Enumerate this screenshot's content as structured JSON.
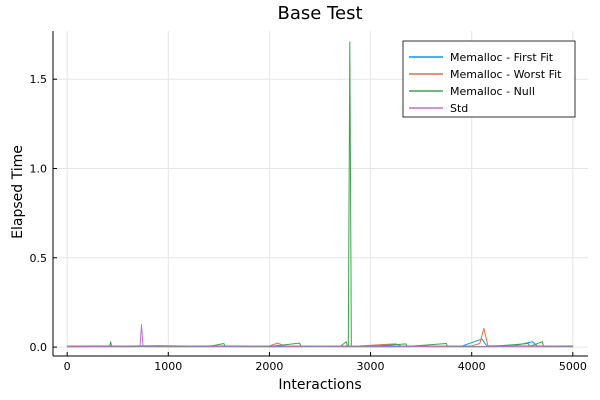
{
  "chart_data": {
    "type": "line",
    "title": "Base Test",
    "xlabel": "Interactions",
    "ylabel": "Elapsed Time",
    "xlim": [
      -140,
      5150
    ],
    "ylim": [
      -0.05,
      1.77
    ],
    "xticks": [
      0,
      1000,
      2000,
      3000,
      4000,
      5000
    ],
    "yticks": [
      0.0,
      0.5,
      1.0,
      1.5
    ],
    "xtick_labels": [
      "0",
      "1000",
      "2000",
      "3000",
      "4000",
      "5000"
    ],
    "ytick_labels": [
      "0.0",
      "0.5",
      "1.0",
      "1.5"
    ],
    "grid": true,
    "legend_position": "top-right",
    "series": [
      {
        "name": "Memalloc - First Fit",
        "color": "#009af9",
        "points": [
          [
            0,
            0.004
          ],
          [
            200,
            0.005
          ],
          [
            400,
            0.004
          ],
          [
            700,
            0.005
          ],
          [
            1000,
            0.006
          ],
          [
            1300,
            0.004
          ],
          [
            1600,
            0.005
          ],
          [
            2000,
            0.005
          ],
          [
            2300,
            0.004
          ],
          [
            2600,
            0.005
          ],
          [
            2800,
            0.005
          ],
          [
            3000,
            0.006
          ],
          [
            3300,
            0.005
          ],
          [
            3600,
            0.004
          ],
          [
            3900,
            0.005
          ],
          [
            4100,
            0.045
          ],
          [
            4150,
            0.006
          ],
          [
            4400,
            0.005
          ],
          [
            4600,
            0.03
          ],
          [
            4650,
            0.006
          ],
          [
            4800,
            0.005
          ],
          [
            5000,
            0.005
          ]
        ]
      },
      {
        "name": "Memalloc - Worst Fit",
        "color": "#e26f46",
        "points": [
          [
            0,
            0.006
          ],
          [
            300,
            0.007
          ],
          [
            600,
            0.006
          ],
          [
            900,
            0.008
          ],
          [
            1200,
            0.006
          ],
          [
            1500,
            0.007
          ],
          [
            2000,
            0.006
          ],
          [
            2080,
            0.022
          ],
          [
            2150,
            0.007
          ],
          [
            2500,
            0.006
          ],
          [
            2900,
            0.007
          ],
          [
            3250,
            0.018
          ],
          [
            3300,
            0.007
          ],
          [
            3700,
            0.006
          ],
          [
            4000,
            0.007
          ],
          [
            4080,
            0.02
          ],
          [
            4120,
            0.105
          ],
          [
            4160,
            0.008
          ],
          [
            4500,
            0.007
          ],
          [
            4800,
            0.006
          ],
          [
            5000,
            0.007
          ]
        ]
      },
      {
        "name": "Memalloc - Null",
        "color": "#3da44d",
        "points": [
          [
            0,
            0.002
          ],
          [
            420,
            0.003
          ],
          [
            430,
            0.03
          ],
          [
            440,
            0.003
          ],
          [
            900,
            0.004
          ],
          [
            1400,
            0.003
          ],
          [
            1550,
            0.02
          ],
          [
            1560,
            0.003
          ],
          [
            2000,
            0.003
          ],
          [
            2300,
            0.022
          ],
          [
            2310,
            0.003
          ],
          [
            2700,
            0.004
          ],
          [
            2760,
            0.03
          ],
          [
            2770,
            0.003
          ],
          [
            2780,
            0.002
          ],
          [
            2795,
            1.71
          ],
          [
            2810,
            0.003
          ],
          [
            3000,
            0.004
          ],
          [
            3350,
            0.018
          ],
          [
            3360,
            0.003
          ],
          [
            3750,
            0.02
          ],
          [
            3760,
            0.003
          ],
          [
            4200,
            0.004
          ],
          [
            4560,
            0.02
          ],
          [
            4570,
            0.003
          ],
          [
            4700,
            0.03
          ],
          [
            4710,
            0.003
          ],
          [
            5000,
            0.003
          ]
        ]
      },
      {
        "name": "Std",
        "color": "#c271d2",
        "points": [
          [
            0,
            0.001
          ],
          [
            300,
            0.002
          ],
          [
            600,
            0.001
          ],
          [
            720,
            0.002
          ],
          [
            735,
            0.125
          ],
          [
            750,
            0.002
          ],
          [
            1100,
            0.001
          ],
          [
            1500,
            0.002
          ],
          [
            2000,
            0.001
          ],
          [
            2500,
            0.002
          ],
          [
            3000,
            0.001
          ],
          [
            3500,
            0.002
          ],
          [
            4000,
            0.001
          ],
          [
            4500,
            0.002
          ],
          [
            5000,
            0.001
          ]
        ]
      }
    ]
  }
}
